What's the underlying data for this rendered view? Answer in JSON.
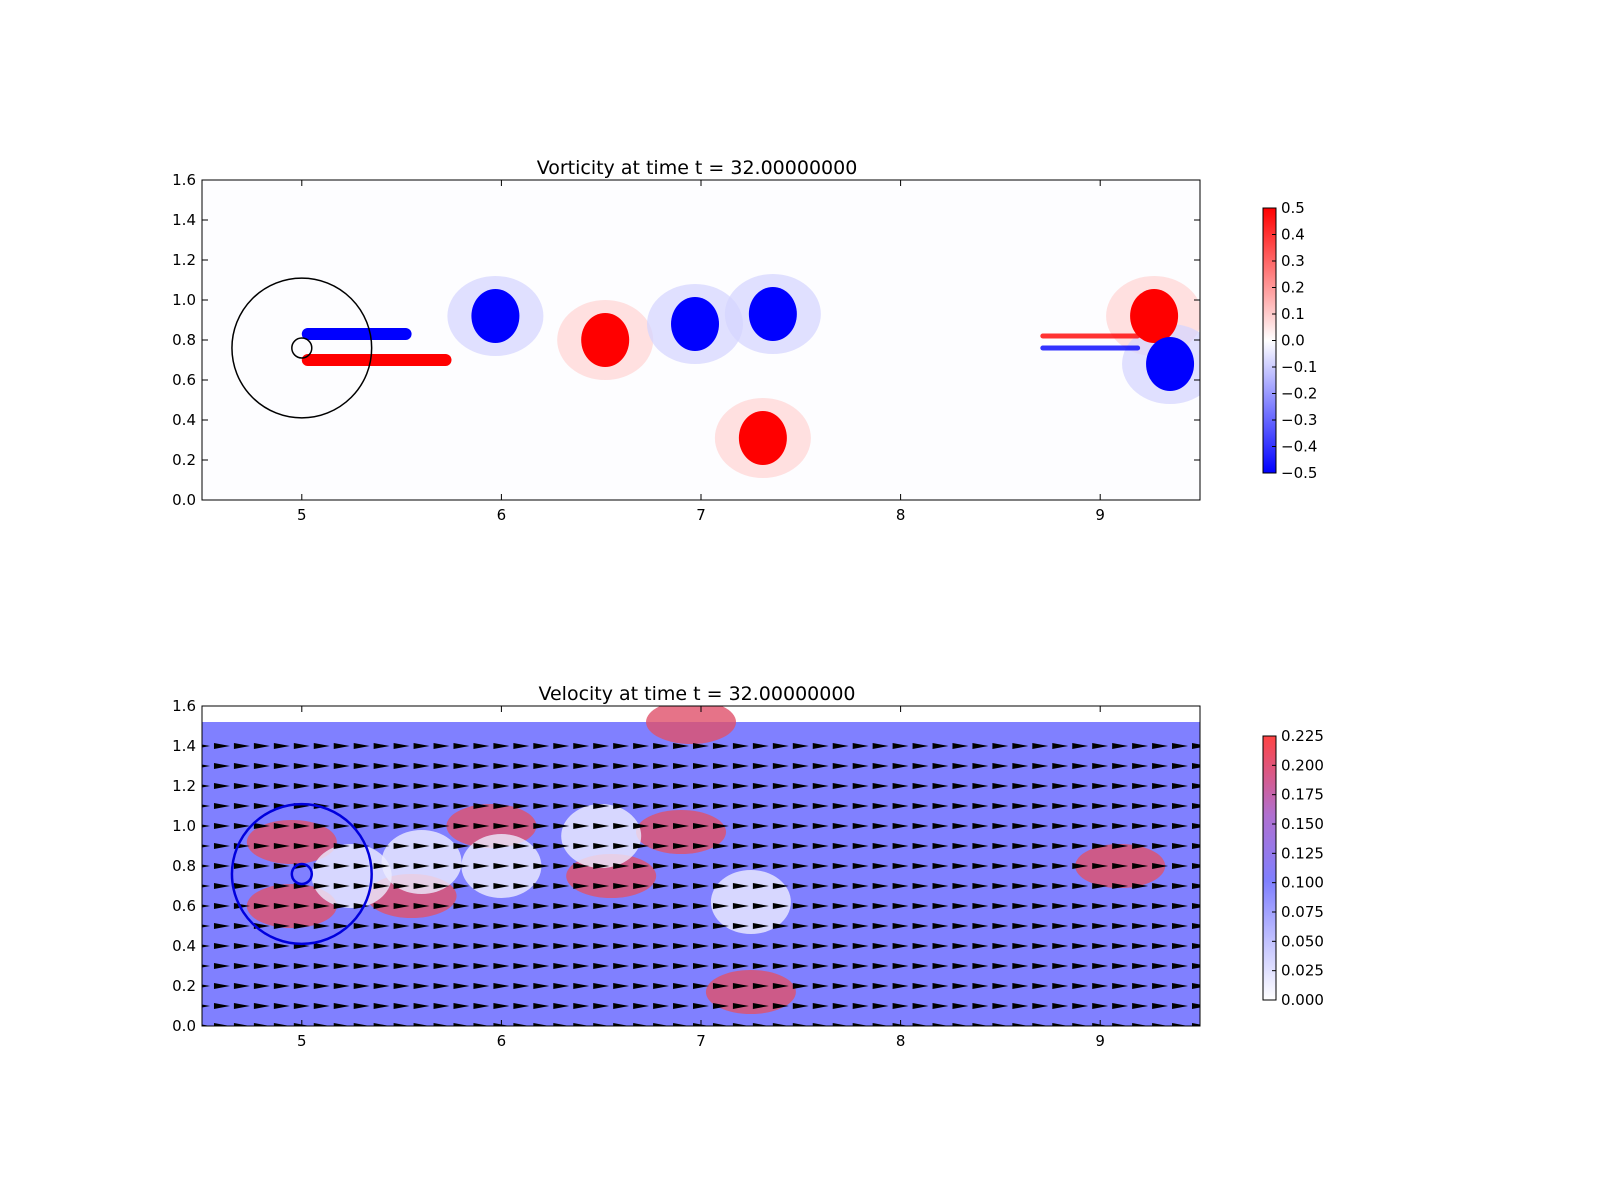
{
  "chart_data": [
    {
      "type": "heatmap",
      "title": "Vorticity at time t =    32.00000000",
      "xlim": [
        4.5,
        9.5
      ],
      "ylim": [
        0.0,
        1.6
      ],
      "xticks": [
        "5",
        "6",
        "7",
        "8",
        "9"
      ],
      "yticks": [
        "0.0",
        "0.2",
        "0.4",
        "0.6",
        "0.8",
        "1.0",
        "1.2",
        "1.4",
        "1.6"
      ],
      "colormap": "bwr",
      "color_low": "#0000ff",
      "color_mid": "#ffffff",
      "color_high": "#ff0000",
      "clim": [
        -0.5,
        0.5
      ],
      "colorbar_ticks": [
        "0.5",
        "0.4",
        "0.3",
        "0.2",
        "0.1",
        "0.0",
        "−0.1",
        "−0.2",
        "−0.3",
        "−0.4",
        "−0.5"
      ],
      "features": [
        {
          "kind": "vortex",
          "sign": -1,
          "x": 5.97,
          "y": 0.92
        },
        {
          "kind": "vortex",
          "sign": 1,
          "x": 6.52,
          "y": 0.8
        },
        {
          "kind": "vortex",
          "sign": -1,
          "x": 6.97,
          "y": 0.88
        },
        {
          "kind": "vortex",
          "sign": -1,
          "x": 7.36,
          "y": 0.93
        },
        {
          "kind": "vortex",
          "sign": 1,
          "x": 7.31,
          "y": 0.31
        },
        {
          "kind": "vortex",
          "sign": 1,
          "x": 9.27,
          "y": 0.92
        },
        {
          "kind": "vortex",
          "sign": -1,
          "x": 9.35,
          "y": 0.68
        },
        {
          "kind": "shear-layer",
          "sign": 1,
          "x": [
            5.0,
            5.75
          ],
          "y": 0.7
        },
        {
          "kind": "shear-layer",
          "sign": -1,
          "x": [
            5.0,
            5.55
          ],
          "y": 0.83
        },
        {
          "kind": "wake-streak",
          "sign": 1,
          "x": [
            8.7,
            9.2
          ],
          "y": 0.82
        },
        {
          "kind": "wake-streak",
          "sign": -1,
          "x": [
            8.7,
            9.2
          ],
          "y": 0.76
        }
      ],
      "overlays": [
        {
          "kind": "circle",
          "x": 5.0,
          "y": 0.76,
          "r": 0.35,
          "color": "#000000"
        },
        {
          "kind": "circle",
          "x": 5.0,
          "y": 0.76,
          "r": 0.05,
          "color": "#000000"
        }
      ]
    },
    {
      "type": "heatmap",
      "title": "Velocity at time t =    32.00000000",
      "xlim": [
        4.5,
        9.5
      ],
      "ylim": [
        0.0,
        1.6
      ],
      "field_ylim": [
        0.0,
        1.52
      ],
      "xticks": [
        "5",
        "6",
        "7",
        "8",
        "9"
      ],
      "yticks": [
        "0.0",
        "0.2",
        "0.4",
        "0.6",
        "0.8",
        "1.0",
        "1.2",
        "1.4",
        "1.6"
      ],
      "colormap": "white-blue-red",
      "color_low": "#ffffff",
      "color_mid": "#8080ff",
      "color_high": "#ff4444",
      "clim": [
        0.0,
        0.225
      ],
      "background_speed": 0.1,
      "colorbar_ticks": [
        "0.225",
        "0.200",
        "0.175",
        "0.150",
        "0.125",
        "0.100",
        "0.075",
        "0.050",
        "0.025",
        "0.000"
      ],
      "arrows": {
        "style": "quiver",
        "color": "#000000",
        "direction": "+x",
        "spacing": 0.1
      },
      "features": [
        {
          "kind": "fast",
          "x": 5.95,
          "y": 1.0
        },
        {
          "kind": "fast",
          "x": 6.9,
          "y": 0.97
        },
        {
          "kind": "fast",
          "x": 7.25,
          "y": 0.17
        },
        {
          "kind": "fast",
          "x": 6.55,
          "y": 0.75
        },
        {
          "kind": "fast",
          "x": 5.55,
          "y": 0.65
        },
        {
          "kind": "fast",
          "x": 4.95,
          "y": 0.92
        },
        {
          "kind": "fast",
          "x": 4.95,
          "y": 0.6
        },
        {
          "kind": "fast",
          "x": 9.1,
          "y": 0.8
        },
        {
          "kind": "fast",
          "x": 6.95,
          "y": 1.52
        },
        {
          "kind": "slow",
          "x": 5.6,
          "y": 0.82
        },
        {
          "kind": "slow",
          "x": 6.0,
          "y": 0.8
        },
        {
          "kind": "slow",
          "x": 6.5,
          "y": 0.95
        },
        {
          "kind": "slow",
          "x": 7.25,
          "y": 0.62
        },
        {
          "kind": "slow",
          "x": 5.25,
          "y": 0.75
        }
      ],
      "overlays": [
        {
          "kind": "circle",
          "x": 5.0,
          "y": 0.76,
          "r": 0.35,
          "color": "#0000dd"
        },
        {
          "kind": "circle",
          "x": 5.0,
          "y": 0.76,
          "r": 0.05,
          "color": "#0000dd"
        }
      ]
    }
  ]
}
